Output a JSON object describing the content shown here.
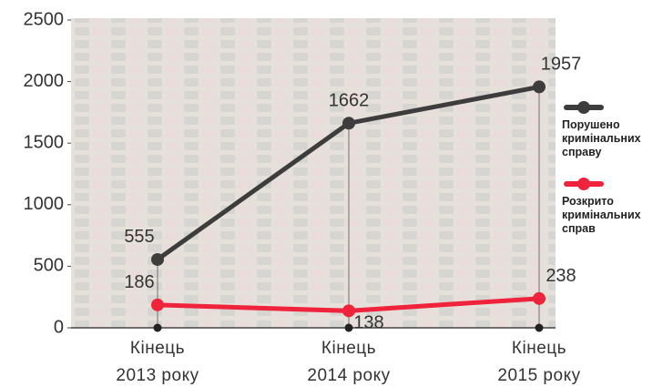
{
  "chart_data": {
    "type": "line",
    "categories": [
      "Кінець\n2013 року",
      "Кінець\n2014 року",
      "Кінець\n2015 року"
    ],
    "series": [
      {
        "name": "Порушено кримінальних справу",
        "color": "#3d3d3d",
        "values": [
          555,
          1662,
          1957
        ]
      },
      {
        "name": "Розкрито кримінальних справ",
        "color": "#f0233c",
        "values": [
          186,
          138,
          238
        ]
      }
    ],
    "ylim": [
      0,
      2500
    ],
    "yticks": [
      0,
      500,
      1000,
      1500,
      2000,
      2500
    ],
    "legend": "right"
  }
}
